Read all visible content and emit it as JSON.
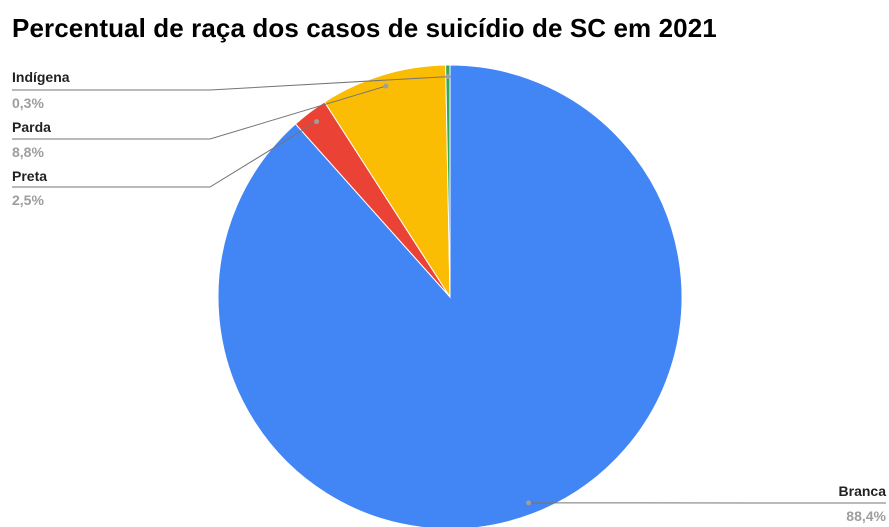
{
  "chart_data": {
    "type": "pie",
    "title": "Percentual de raça dos casos de suicídio de SC em 2021",
    "start_angle_deg": 0,
    "direction": "clockwise",
    "legend": "none",
    "slices": [
      {
        "name": "Branca",
        "value": 88.4,
        "label": "88,4%",
        "color": "#4285f4"
      },
      {
        "name": "Preta",
        "value": 2.5,
        "label": "2,5%",
        "color": "#ea4335"
      },
      {
        "name": "Parda",
        "value": 8.8,
        "label": "8,8%",
        "color": "#fbbc04"
      },
      {
        "name": "Indígena",
        "value": 0.3,
        "label": "0,3%",
        "color": "#34a853"
      }
    ]
  }
}
